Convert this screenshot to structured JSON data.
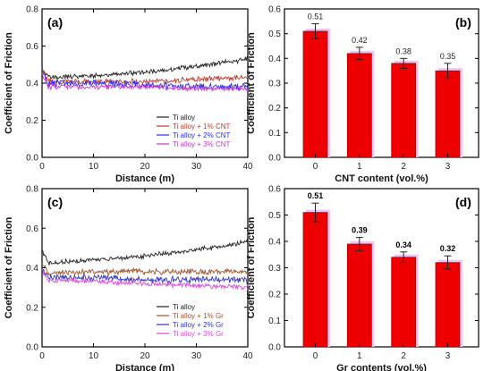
{
  "panels": [
    {
      "label": "(a)",
      "type": "line",
      "xlabel": "Distance (m)",
      "ylabel": "Coefficient of Friction",
      "xlim": [
        0,
        40
      ],
      "ylim": [
        0,
        0.8
      ],
      "xticks": [
        "0",
        "10",
        "20",
        "30",
        "40"
      ],
      "yticks": [
        "0.0",
        "0.2",
        "0.4",
        "0.6",
        "0.8"
      ],
      "legend_position": "bottom-right",
      "series": [
        {
          "name": "Ti alloy",
          "color": "#222222",
          "start": 0.48,
          "level": [
            [
              0,
              0.43
            ],
            [
              10,
              0.44
            ],
            [
              20,
              0.46
            ],
            [
              30,
              0.49
            ],
            [
              40,
              0.53
            ]
          ],
          "noise": 0.01
        },
        {
          "name": "Ti alloy + 1% CNT",
          "color": "#c0392b",
          "start": 0.47,
          "level": [
            [
              0,
              0.41
            ],
            [
              10,
              0.41
            ],
            [
              20,
              0.41
            ],
            [
              30,
              0.42
            ],
            [
              40,
              0.43
            ]
          ],
          "noise": 0.012
        },
        {
          "name": "Ti alloy + 2% CNT",
          "color": "#2b2bff",
          "start": 0.46,
          "level": [
            [
              0,
              0.4
            ],
            [
              10,
              0.4
            ],
            [
              20,
              0.39
            ],
            [
              30,
              0.38
            ],
            [
              40,
              0.38
            ]
          ],
          "noise": 0.015
        },
        {
          "name": "Ti alloy + 3% CNT",
          "color": "#cc33cc",
          "start": 0.45,
          "level": [
            [
              0,
              0.38
            ],
            [
              10,
              0.38
            ],
            [
              20,
              0.38
            ],
            [
              30,
              0.37
            ],
            [
              40,
              0.37
            ]
          ],
          "noise": 0.01
        }
      ]
    },
    {
      "label": "(b)",
      "type": "bar",
      "xlabel": "CNT content (vol.%)",
      "ylabel": "Coefficient of Friction",
      "ylim": [
        0,
        0.6
      ],
      "yticks": [
        "0.0",
        "0.1",
        "0.2",
        "0.3",
        "0.4",
        "0.5",
        "0.6"
      ],
      "categories": [
        "0",
        "1",
        "2",
        "3"
      ],
      "values": [
        0.51,
        0.42,
        0.38,
        0.35
      ],
      "errors": [
        0.03,
        0.025,
        0.02,
        0.03
      ],
      "value_labels": [
        "0.51",
        "0.42",
        "0.38",
        "0.35"
      ],
      "bold_labels": false,
      "bar_color": "#ee0000",
      "shadow_color": "#f2c4f2"
    },
    {
      "label": "(c)",
      "type": "line",
      "xlabel": "Distance (m)",
      "ylabel": "Coefficient of Friction",
      "xlim": [
        0,
        40
      ],
      "ylim": [
        0,
        0.8
      ],
      "xticks": [
        "0",
        "10",
        "20",
        "30",
        "40"
      ],
      "yticks": [
        "0.0",
        "0.2",
        "0.4",
        "0.6",
        "0.8"
      ],
      "legend_position": "bottom-right",
      "series": [
        {
          "name": "Ti alloy",
          "color": "#222222",
          "start": 0.49,
          "level": [
            [
              0,
              0.42
            ],
            [
              10,
              0.44
            ],
            [
              20,
              0.46
            ],
            [
              30,
              0.49
            ],
            [
              40,
              0.53
            ]
          ],
          "noise": 0.01
        },
        {
          "name": "Ti alloy + 1% Gr",
          "color": "#a0522d",
          "start": 0.42,
          "level": [
            [
              0,
              0.37
            ],
            [
              10,
              0.38
            ],
            [
              20,
              0.38
            ],
            [
              30,
              0.38
            ],
            [
              40,
              0.38
            ]
          ],
          "noise": 0.012
        },
        {
          "name": "Ti alloy + 2% Gr",
          "color": "#3333cc",
          "start": 0.4,
          "level": [
            [
              0,
              0.35
            ],
            [
              10,
              0.35
            ],
            [
              20,
              0.34
            ],
            [
              30,
              0.34
            ],
            [
              40,
              0.34
            ]
          ],
          "noise": 0.013
        },
        {
          "name": "Ti alloy + 3% Gr",
          "color": "#dd44dd",
          "start": 0.39,
          "level": [
            [
              0,
              0.34
            ],
            [
              10,
              0.33
            ],
            [
              20,
              0.32
            ],
            [
              30,
              0.31
            ],
            [
              40,
              0.3
            ]
          ],
          "noise": 0.01
        }
      ]
    },
    {
      "label": "(d)",
      "type": "bar",
      "xlabel": "Gr contents (vol.%)",
      "ylabel": "Coefficient of Friction",
      "ylim": [
        0,
        0.6
      ],
      "yticks": [
        "0.0",
        "0.1",
        "0.2",
        "0.3",
        "0.4",
        "0.5",
        "0.6"
      ],
      "categories": [
        "0",
        "1",
        "2",
        "3"
      ],
      "values": [
        0.51,
        0.39,
        0.34,
        0.32
      ],
      "errors": [
        0.035,
        0.025,
        0.02,
        0.025
      ],
      "value_labels": [
        "0.51",
        "0.39",
        "0.34",
        "0.32"
      ],
      "bold_labels": true,
      "bar_color": "#ee0000",
      "shadow_color": "#f2c4f2"
    }
  ],
  "chart_data": [
    {
      "type": "line",
      "label": "(a)",
      "xlabel": "Distance (m)",
      "ylabel": "Coefficient of Friction",
      "xlim": [
        0,
        40
      ],
      "ylim": [
        0,
        0.8
      ],
      "series": [
        {
          "name": "Ti alloy",
          "x": [
            0,
            10,
            20,
            30,
            40
          ],
          "y": [
            0.43,
            0.44,
            0.46,
            0.49,
            0.53
          ]
        },
        {
          "name": "Ti alloy + 1% CNT",
          "x": [
            0,
            10,
            20,
            30,
            40
          ],
          "y": [
            0.41,
            0.41,
            0.41,
            0.42,
            0.43
          ]
        },
        {
          "name": "Ti alloy + 2% CNT",
          "x": [
            0,
            10,
            20,
            30,
            40
          ],
          "y": [
            0.4,
            0.4,
            0.39,
            0.38,
            0.38
          ]
        },
        {
          "name": "Ti alloy + 3% CNT",
          "x": [
            0,
            10,
            20,
            30,
            40
          ],
          "y": [
            0.38,
            0.38,
            0.38,
            0.37,
            0.37
          ]
        }
      ]
    },
    {
      "type": "bar",
      "label": "(b)",
      "xlabel": "CNT content (vol.%)",
      "ylabel": "Coefficient of Friction",
      "ylim": [
        0,
        0.6
      ],
      "categories": [
        "0",
        "1",
        "2",
        "3"
      ],
      "values": [
        0.51,
        0.42,
        0.38,
        0.35
      ]
    },
    {
      "type": "line",
      "label": "(c)",
      "xlabel": "Distance (m)",
      "ylabel": "Coefficient of Friction",
      "xlim": [
        0,
        40
      ],
      "ylim": [
        0,
        0.8
      ],
      "series": [
        {
          "name": "Ti alloy",
          "x": [
            0,
            10,
            20,
            30,
            40
          ],
          "y": [
            0.42,
            0.44,
            0.46,
            0.49,
            0.53
          ]
        },
        {
          "name": "Ti alloy + 1% Gr",
          "x": [
            0,
            10,
            20,
            30,
            40
          ],
          "y": [
            0.37,
            0.38,
            0.38,
            0.38,
            0.38
          ]
        },
        {
          "name": "Ti alloy + 2% Gr",
          "x": [
            0,
            10,
            20,
            30,
            40
          ],
          "y": [
            0.35,
            0.35,
            0.34,
            0.34,
            0.34
          ]
        },
        {
          "name": "Ti alloy + 3% Gr",
          "x": [
            0,
            10,
            20,
            30,
            40
          ],
          "y": [
            0.34,
            0.33,
            0.32,
            0.31,
            0.3
          ]
        }
      ]
    },
    {
      "type": "bar",
      "label": "(d)",
      "xlabel": "Gr contents (vol.%)",
      "ylabel": "Coefficient of Friction",
      "ylim": [
        0,
        0.6
      ],
      "categories": [
        "0",
        "1",
        "2",
        "3"
      ],
      "values": [
        0.51,
        0.39,
        0.34,
        0.32
      ]
    }
  ]
}
